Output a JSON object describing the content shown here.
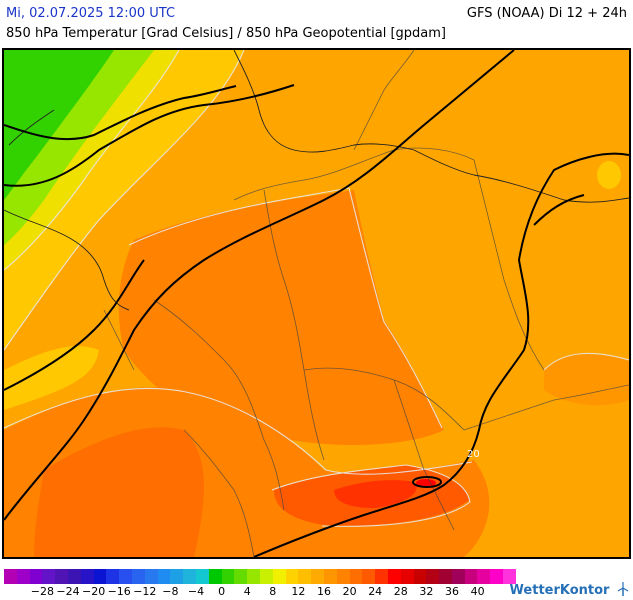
{
  "header": {
    "date": "Mi, 02.07.2025 12:00 UTC",
    "model": "GFS (NOAA) Di 12 + 24h",
    "params": "850 hPa Temperatur [Grad Celsius] / 850 hPa Geopotential [gpdam]"
  },
  "map": {
    "isotherm_label": "20"
  },
  "legend": {
    "colors": [
      "#b400b4",
      "#9d00c8",
      "#8000d2",
      "#6414c8",
      "#5014b4",
      "#3c14b4",
      "#2814c8",
      "#0a14d2",
      "#1e32e6",
      "#2850f0",
      "#2864f0",
      "#2878f0",
      "#1e8cf0",
      "#1ea0e6",
      "#1eb4dc",
      "#14c8d2",
      "#00c800",
      "#32d200",
      "#64dc00",
      "#96e600",
      "#c8f000",
      "#f0f000",
      "#ffd200",
      "#ffbe00",
      "#ffaa00",
      "#ff9600",
      "#ff8200",
      "#ff6e00",
      "#ff5a00",
      "#ff3200",
      "#ff0000",
      "#e60000",
      "#c80000",
      "#b40014",
      "#a00032",
      "#a0005a",
      "#c8007d",
      "#e600a0",
      "#ff00c8",
      "#ff32dc"
    ],
    "labels": [
      "−28",
      "−24",
      "−20",
      "−16",
      "−12",
      "−8",
      "−4",
      "0",
      "4",
      "8",
      "12",
      "16",
      "20",
      "24",
      "28",
      "32",
      "36",
      "40"
    ]
  },
  "brand": "WetterKontor"
}
